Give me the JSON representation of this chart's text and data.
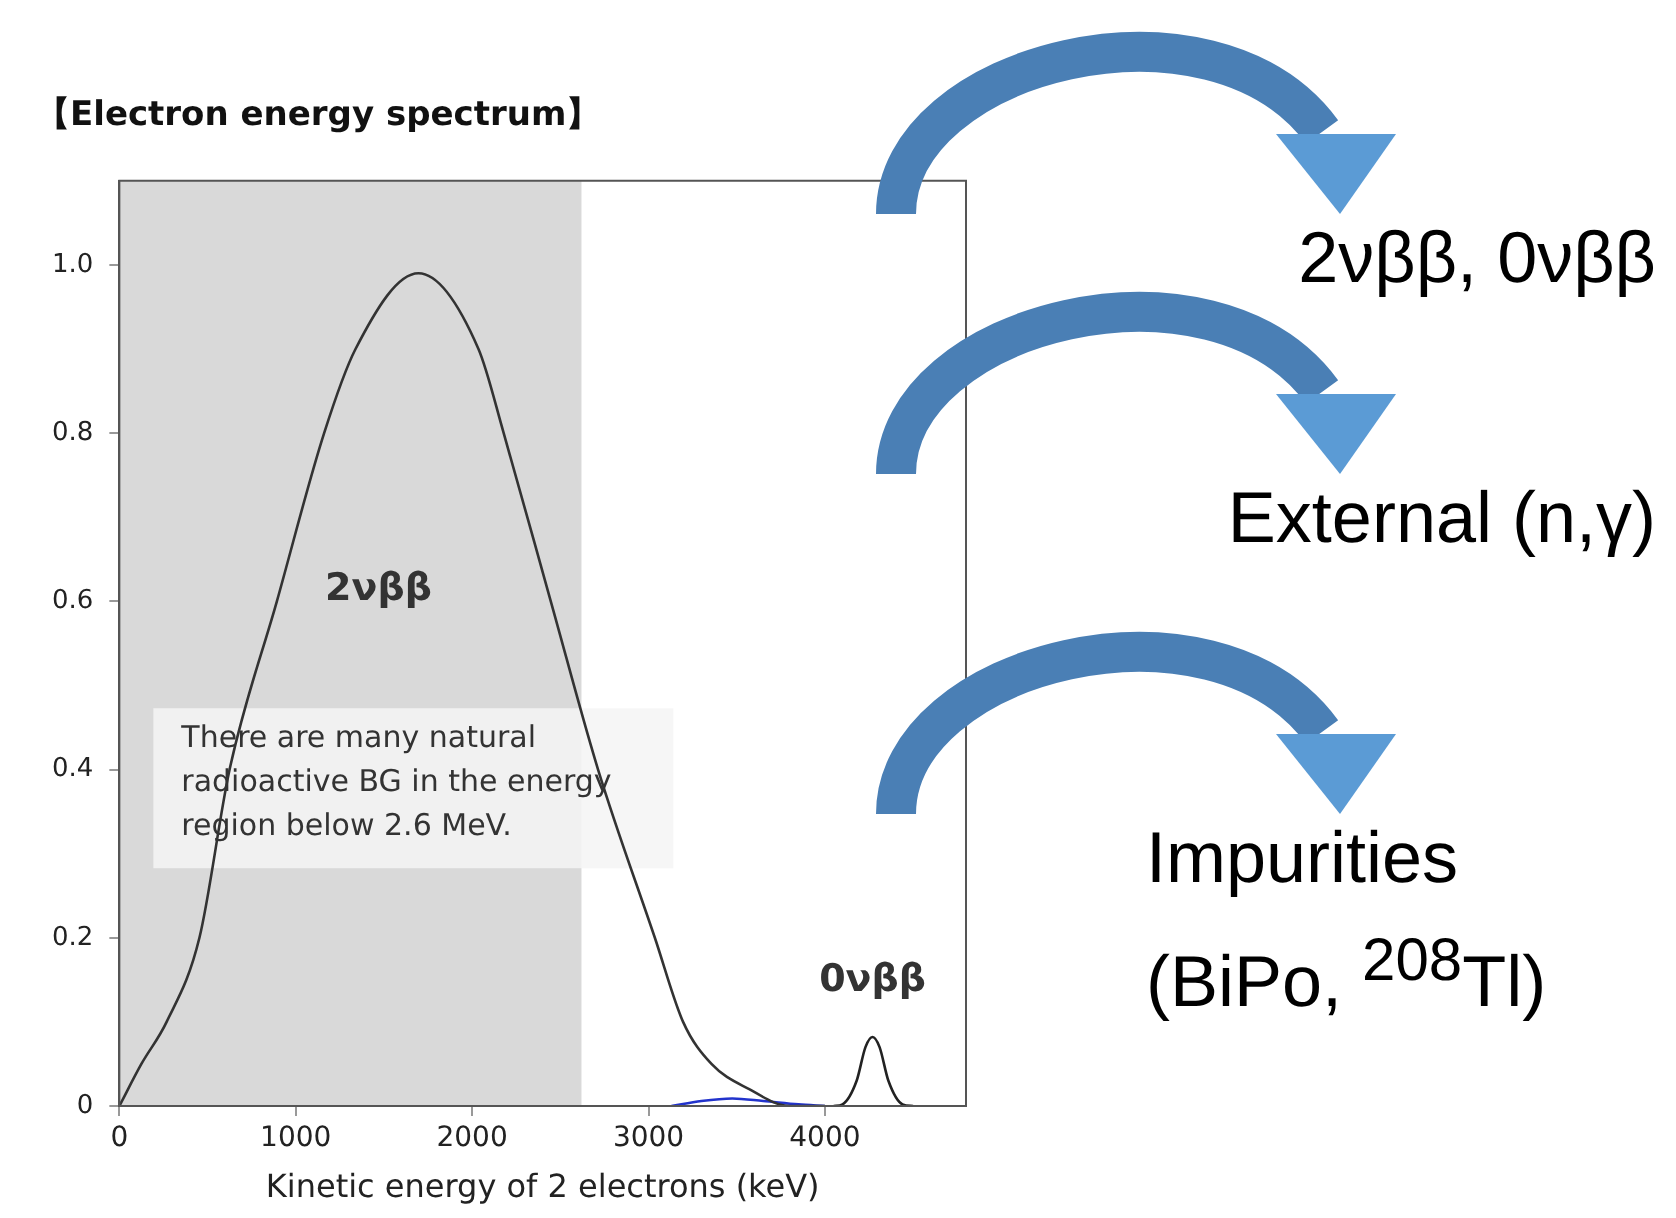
{
  "chart_data": {
    "type": "line",
    "title": "【Electron energy spectrum】",
    "xlabel": "Kinetic energy of 2 electrons (keV)",
    "series": [
      {
        "name": "2νββ",
        "color": "#333333",
        "x": [
          0,
          125,
          268,
          454,
          625,
          893,
          1161,
          1339,
          1696,
          2036,
          2179,
          2446,
          2714,
          3036,
          3196,
          3357,
          3571,
          3800,
          4000
        ],
        "values": [
          0,
          0.05,
          0.1,
          0.2,
          0.4,
          0.6,
          0.8,
          0.9,
          0.99,
          0.9,
          0.8,
          0.6,
          0.4,
          0.2,
          0.1,
          0.05,
          0.02,
          0,
          0
        ]
      },
      {
        "name": "0νββ",
        "color": "#222222",
        "x": [
          4050,
          4100,
          4180,
          4230,
          4270,
          4310,
          4360,
          4440,
          4500
        ],
        "values": [
          0,
          0.002,
          0.03,
          0.07,
          0.082,
          0.07,
          0.03,
          0.002,
          0
        ]
      },
      {
        "color": "#2233cc",
        "x": [
          3130,
          3300,
          3475,
          3650,
          3850,
          4000
        ],
        "values": [
          0,
          0.006,
          0.009,
          0.006,
          0.002,
          0
        ]
      }
    ],
    "xlim": [
      0,
      4800
    ],
    "xticks": [
      0,
      1000,
      2000,
      3000,
      4000
    ],
    "ylim": [
      0,
      1.1
    ],
    "yticks": [
      0,
      0.2,
      0.4,
      0.6,
      0.8,
      {
        "value": 1,
        "label": "1.0"
      }
    ],
    "bands": [
      {
        "axis": "x",
        "from": 0,
        "to": 2620,
        "color": "#d9d9d9"
      }
    ],
    "annotations": [
      "There are many natural radioactive BG in the energy region below 2.6 MeV.",
      "2νββ, 0νββ",
      "External (n,γ)",
      "Impurities (BiPo, $^{208}$Tl)"
    ],
    "grid": false,
    "legend": false,
    "marker": "none",
    "line_style": "solid"
  }
}
